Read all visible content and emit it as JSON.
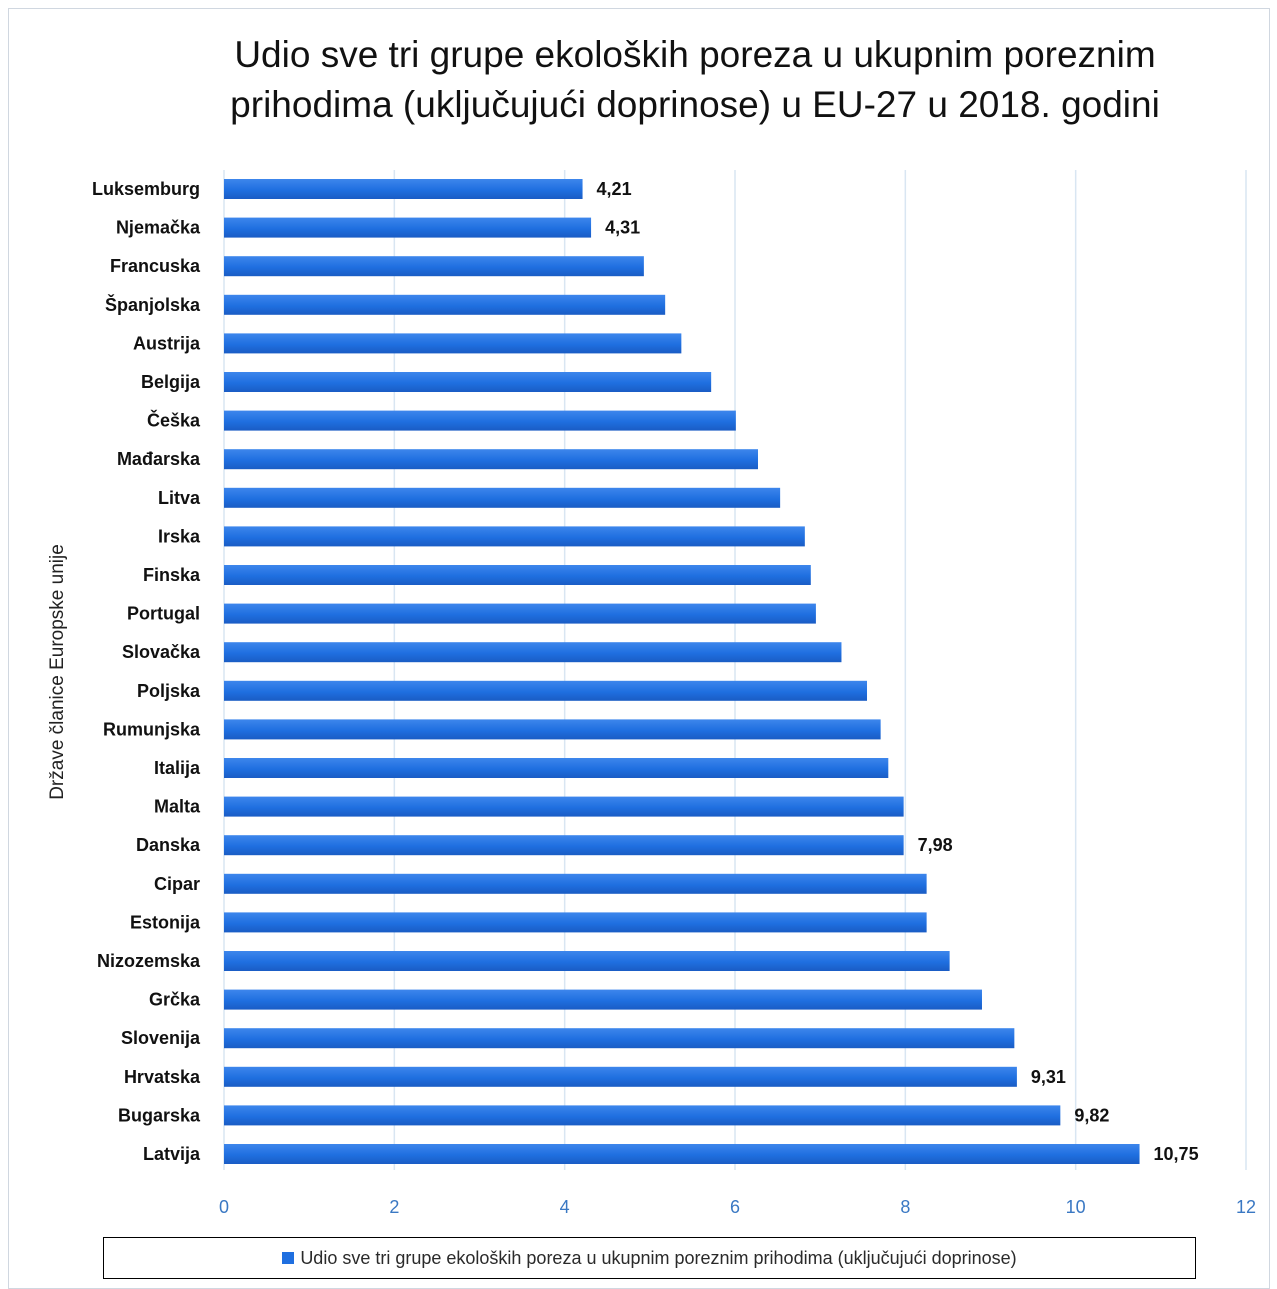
{
  "chart_data": {
    "type": "bar",
    "orientation": "horizontal",
    "title": "Udio sve tri grupe ekoloških poreza u ukupnim poreznim prihodima (uključujući doprinose) u EU-27 u 2018. godini",
    "title_lines": [
      "Udio sve tri grupe ekoloških poreza u ukupnim poreznim",
      "prihodima (uključujući doprinose) u EU-27 u 2018. godini"
    ],
    "xlabel": "",
    "ylabel": "Države članice Europske unije",
    "xlim": [
      0,
      12
    ],
    "xticks": [
      0,
      2,
      4,
      6,
      8,
      10,
      12
    ],
    "grid": true,
    "legend_position": "bottom",
    "categories": [
      "Luksemburg",
      "Njemačka",
      "Francuska",
      "Španjolska",
      "Austrija",
      "Belgija",
      "Češka",
      "Mađarska",
      "Litva",
      "Irska",
      "Finska",
      "Portugal",
      "Slovačka",
      "Poljska",
      "Rumunjska",
      "Italija",
      "Malta",
      "Danska",
      "Cipar",
      "Estonija",
      "Nizozemska",
      "Grčka",
      "Slovenija",
      "Hrvatska",
      "Bugarska",
      "Latvija"
    ],
    "series": [
      {
        "name": "Udio sve tri grupe ekoloških poreza u ukupnim poreznim prihodima (uključujući doprinose)",
        "color": "#1f6fe0",
        "values": [
          4.21,
          4.31,
          4.93,
          5.18,
          5.37,
          5.72,
          6.01,
          6.27,
          6.53,
          6.82,
          6.89,
          6.95,
          7.25,
          7.55,
          7.71,
          7.8,
          7.98,
          7.98,
          8.25,
          8.25,
          8.52,
          8.9,
          9.28,
          9.31,
          9.82,
          10.75
        ]
      }
    ],
    "data_labels": [
      {
        "category": "Luksemburg",
        "text": "4,21"
      },
      {
        "category": "Njemačka",
        "text": "4,31"
      },
      {
        "category": "Danska",
        "text": "7,98"
      },
      {
        "category": "Hrvatska",
        "text": "9,31"
      },
      {
        "category": "Bugarska",
        "text": "9,82"
      },
      {
        "category": "Latvija",
        "text": "10,75"
      }
    ],
    "colors": {
      "bar": "#1f6fe0",
      "grid": "#d9e6f2",
      "tick_label": "#3a78c3",
      "category_label": "#111111"
    }
  }
}
